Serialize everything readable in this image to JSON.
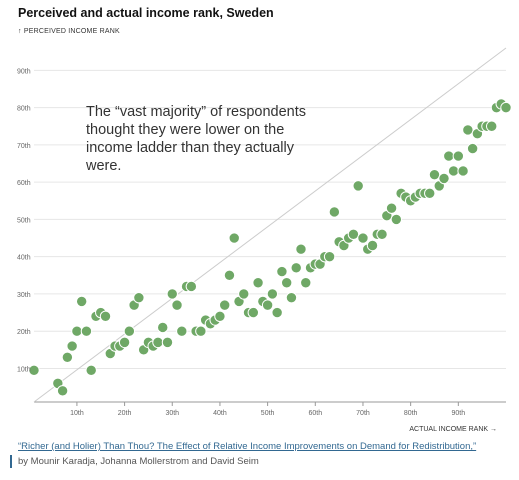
{
  "title": "Perceived and actual income rank, Sweden",
  "y_axis_title": "↑ PERCEIVED INCOME RANK",
  "x_axis_title": "ACTUAL INCOME RANK →",
  "annotation": "The “vast majority” of respondents thought they were lower on the income ladder than they actually were.",
  "source": {
    "link_text": "“Richer (and Holier) Than Thou? The Effect of Relative Income Improvements on Demand for Redistribution,”",
    "authors": "by Mounir Karadja, Johanna Mollerstrom and David Seim"
  },
  "colors": {
    "point": "#6fa866",
    "point_stroke": "#ffffff",
    "grid": "#e6e6e6",
    "diagonal": "#cccccc",
    "link": "#326891"
  },
  "chart_data": {
    "type": "scatter",
    "title": "Perceived and actual income rank, Sweden",
    "xlabel": "ACTUAL INCOME RANK →",
    "ylabel": "↑ PERCEIVED INCOME RANK",
    "xlim": [
      1,
      100
    ],
    "ylim": [
      1,
      96
    ],
    "x_ticks": [
      10,
      20,
      30,
      40,
      50,
      60,
      70,
      80,
      90
    ],
    "x_tick_labels": [
      "10th",
      "20th",
      "30th",
      "40th",
      "50th",
      "60th",
      "70th",
      "80th",
      "90th"
    ],
    "y_ticks": [
      10,
      20,
      30,
      40,
      50,
      60,
      70,
      80,
      90
    ],
    "y_tick_labels": [
      "10th",
      "20th",
      "30th",
      "40th",
      "50th",
      "60th",
      "70th",
      "80th",
      "90th"
    ],
    "grid": "horizontal",
    "reference_line": "y = x",
    "points": [
      {
        "x": 1,
        "y": 9.5
      },
      {
        "x": 6,
        "y": 6
      },
      {
        "x": 7,
        "y": 4
      },
      {
        "x": 8,
        "y": 13
      },
      {
        "x": 9,
        "y": 16
      },
      {
        "x": 10,
        "y": 20
      },
      {
        "x": 11,
        "y": 28
      },
      {
        "x": 12,
        "y": 20
      },
      {
        "x": 13,
        "y": 9.5
      },
      {
        "x": 14,
        "y": 24
      },
      {
        "x": 15,
        "y": 25
      },
      {
        "x": 16,
        "y": 24
      },
      {
        "x": 17,
        "y": 14
      },
      {
        "x": 18,
        "y": 16
      },
      {
        "x": 19,
        "y": 16
      },
      {
        "x": 20,
        "y": 17
      },
      {
        "x": 21,
        "y": 20
      },
      {
        "x": 22,
        "y": 27
      },
      {
        "x": 23,
        "y": 29
      },
      {
        "x": 24,
        "y": 15
      },
      {
        "x": 25,
        "y": 17
      },
      {
        "x": 26,
        "y": 16
      },
      {
        "x": 27,
        "y": 17
      },
      {
        "x": 28,
        "y": 21
      },
      {
        "x": 29,
        "y": 17
      },
      {
        "x": 30,
        "y": 30
      },
      {
        "x": 31,
        "y": 27
      },
      {
        "x": 32,
        "y": 20
      },
      {
        "x": 33,
        "y": 32
      },
      {
        "x": 34,
        "y": 32
      },
      {
        "x": 35,
        "y": 20
      },
      {
        "x": 36,
        "y": 20
      },
      {
        "x": 37,
        "y": 23
      },
      {
        "x": 38,
        "y": 22
      },
      {
        "x": 39,
        "y": 23
      },
      {
        "x": 40,
        "y": 24
      },
      {
        "x": 41,
        "y": 27
      },
      {
        "x": 42,
        "y": 35
      },
      {
        "x": 43,
        "y": 45
      },
      {
        "x": 44,
        "y": 28
      },
      {
        "x": 45,
        "y": 30
      },
      {
        "x": 46,
        "y": 25
      },
      {
        "x": 47,
        "y": 25
      },
      {
        "x": 48,
        "y": 33
      },
      {
        "x": 49,
        "y": 28
      },
      {
        "x": 50,
        "y": 27
      },
      {
        "x": 51,
        "y": 30
      },
      {
        "x": 52,
        "y": 25
      },
      {
        "x": 53,
        "y": 36
      },
      {
        "x": 54,
        "y": 33
      },
      {
        "x": 55,
        "y": 29
      },
      {
        "x": 56,
        "y": 37
      },
      {
        "x": 57,
        "y": 42
      },
      {
        "x": 58,
        "y": 33
      },
      {
        "x": 59,
        "y": 37
      },
      {
        "x": 60,
        "y": 38
      },
      {
        "x": 61,
        "y": 38
      },
      {
        "x": 62,
        "y": 40
      },
      {
        "x": 63,
        "y": 40
      },
      {
        "x": 64,
        "y": 52
      },
      {
        "x": 65,
        "y": 44
      },
      {
        "x": 66,
        "y": 43
      },
      {
        "x": 67,
        "y": 45
      },
      {
        "x": 68,
        "y": 46
      },
      {
        "x": 69,
        "y": 59
      },
      {
        "x": 70,
        "y": 45
      },
      {
        "x": 71,
        "y": 42
      },
      {
        "x": 72,
        "y": 43
      },
      {
        "x": 73,
        "y": 46
      },
      {
        "x": 74,
        "y": 46
      },
      {
        "x": 75,
        "y": 51
      },
      {
        "x": 76,
        "y": 53
      },
      {
        "x": 77,
        "y": 50
      },
      {
        "x": 78,
        "y": 57
      },
      {
        "x": 79,
        "y": 56
      },
      {
        "x": 80,
        "y": 55
      },
      {
        "x": 81,
        "y": 56
      },
      {
        "x": 82,
        "y": 57
      },
      {
        "x": 83,
        "y": 57
      },
      {
        "x": 84,
        "y": 57
      },
      {
        "x": 85,
        "y": 62
      },
      {
        "x": 86,
        "y": 59
      },
      {
        "x": 87,
        "y": 61
      },
      {
        "x": 88,
        "y": 67
      },
      {
        "x": 89,
        "y": 63
      },
      {
        "x": 90,
        "y": 67
      },
      {
        "x": 91,
        "y": 63
      },
      {
        "x": 92,
        "y": 74
      },
      {
        "x": 93,
        "y": 69
      },
      {
        "x": 94,
        "y": 73
      },
      {
        "x": 95,
        "y": 75
      },
      {
        "x": 96,
        "y": 75
      },
      {
        "x": 97,
        "y": 75
      },
      {
        "x": 98,
        "y": 80
      },
      {
        "x": 99,
        "y": 81
      },
      {
        "x": 100,
        "y": 80
      }
    ]
  }
}
